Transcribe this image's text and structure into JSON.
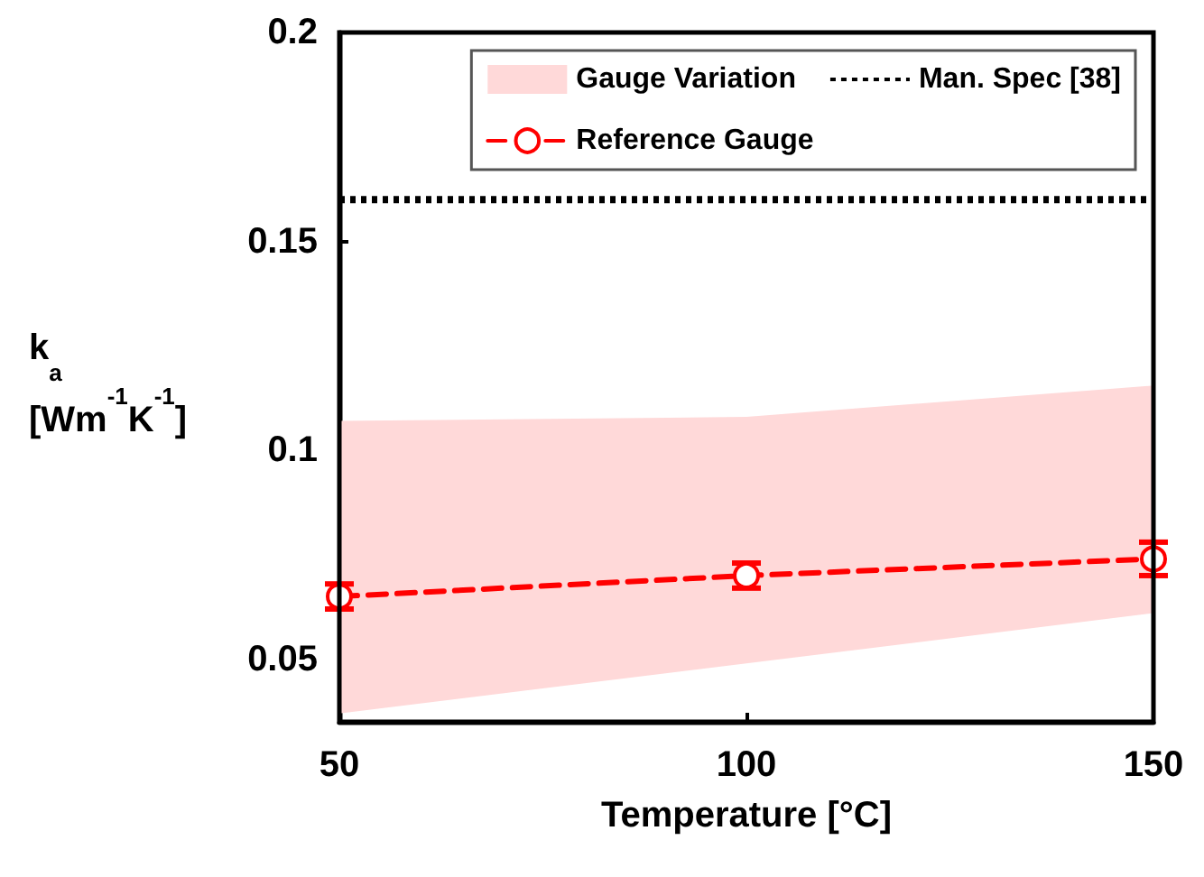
{
  "chart_data": {
    "type": "line",
    "xlabel": "Temperature [°C]",
    "ylabel": "k$_{a}$ [Wm$^{-1}$K$^{-1}$]",
    "x": [
      50,
      100,
      150
    ],
    "series": [
      {
        "name": "Gauge Variation",
        "type": "area",
        "color": "#ffd9d9",
        "values": [
          null,
          null,
          null
        ],
        "lower": [
          0.037,
          0.049,
          0.061
        ],
        "upper": [
          0.107,
          0.108,
          0.1155
        ]
      },
      {
        "name": "Reference Gauge",
        "type": "line",
        "color": "#ff0000",
        "values": [
          0.065,
          0.07,
          0.074
        ],
        "errors": [
          0.003,
          0.003,
          0.004
        ],
        "marker": "circle",
        "line_style": "dashed"
      }
    ],
    "ref_lines": [
      {
        "axis": "y",
        "value": 0.16,
        "label": "Man. Spec [38]",
        "color": "#000000",
        "line_style": "dotted"
      }
    ],
    "xlim": [
      50,
      150
    ],
    "xticks": [
      50,
      100,
      150
    ],
    "ylim": [
      0.035,
      0.2
    ],
    "yticks": [
      0.05,
      0.1,
      0.15,
      0.2
    ],
    "grid": false,
    "legend": "top right"
  }
}
